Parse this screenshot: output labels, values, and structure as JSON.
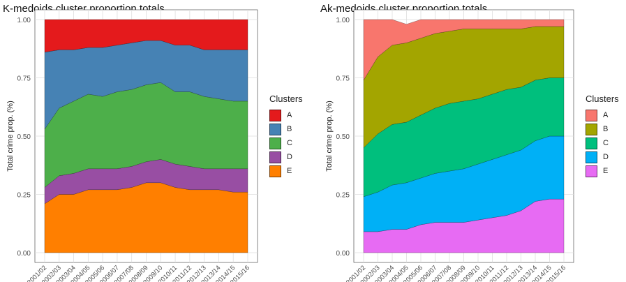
{
  "chart_data": [
    {
      "type": "area",
      "stacked": true,
      "title": "K-medoids cluster proportion totals",
      "xlabel": "",
      "ylabel": "Total crime prop. (%)",
      "ylim": [
        0,
        1
      ],
      "yticks": [
        "0.00",
        "0.25",
        "0.50",
        "0.75",
        "1.00"
      ],
      "grid": true,
      "legend_title": "Clusters",
      "legend_position": "right",
      "categories": [
        "2001/02",
        "2002/03",
        "2003/04",
        "2004/05",
        "2005/06",
        "2006/07",
        "2007/08",
        "2008/09",
        "2009/10",
        "2010/11",
        "2011/12",
        "2012/13",
        "2013/14",
        "2014/15",
        "2015/16"
      ],
      "series": [
        {
          "name": "A",
          "color": "#E41A1C",
          "values": [
            0.14,
            0.13,
            0.13,
            0.12,
            0.12,
            0.11,
            0.1,
            0.09,
            0.09,
            0.11,
            0.11,
            0.13,
            0.13,
            0.13,
            0.13
          ]
        },
        {
          "name": "B",
          "color": "#4682B4",
          "values": [
            0.33,
            0.25,
            0.22,
            0.2,
            0.21,
            0.2,
            0.2,
            0.19,
            0.18,
            0.2,
            0.2,
            0.2,
            0.21,
            0.22,
            0.22
          ]
        },
        {
          "name": "C",
          "color": "#4DAF4A",
          "values": [
            0.25,
            0.29,
            0.31,
            0.32,
            0.31,
            0.33,
            0.33,
            0.33,
            0.33,
            0.31,
            0.32,
            0.31,
            0.3,
            0.29,
            0.29
          ]
        },
        {
          "name": "D",
          "color": "#984EA3",
          "values": [
            0.07,
            0.08,
            0.09,
            0.09,
            0.09,
            0.09,
            0.09,
            0.09,
            0.1,
            0.1,
            0.1,
            0.09,
            0.09,
            0.1,
            0.1
          ]
        },
        {
          "name": "E",
          "color": "#FF7F00",
          "values": [
            0.21,
            0.25,
            0.25,
            0.27,
            0.27,
            0.27,
            0.28,
            0.3,
            0.3,
            0.28,
            0.27,
            0.27,
            0.27,
            0.26,
            0.26
          ]
        }
      ]
    },
    {
      "type": "area",
      "stacked": true,
      "title": "Ak-medoids cluster proportion totals",
      "xlabel": "",
      "ylabel": "Total crime prop. (%)",
      "ylim": [
        0,
        1
      ],
      "yticks": [
        "0.00",
        "0.25",
        "0.50",
        "0.75",
        "1.00"
      ],
      "grid": true,
      "legend_title": "Clusters",
      "legend_position": "right",
      "categories": [
        "2001/02",
        "2002/03",
        "2003/04",
        "2004/05",
        "2005/06",
        "2006/07",
        "2007/08",
        "2008/09",
        "2009/10",
        "2010/11",
        "2011/12",
        "2012/13",
        "2013/14",
        "2014/15",
        "2015/16"
      ],
      "series": [
        {
          "name": "A",
          "color": "#F8766D",
          "values": [
            0.26,
            0.16,
            0.11,
            0.08,
            0.08,
            0.06,
            0.05,
            0.04,
            0.04,
            0.04,
            0.04,
            0.04,
            0.03,
            0.03,
            0.03
          ]
        },
        {
          "name": "B",
          "color": "#A3A500",
          "values": [
            0.29,
            0.33,
            0.34,
            0.34,
            0.33,
            0.32,
            0.31,
            0.31,
            0.3,
            0.28,
            0.26,
            0.25,
            0.23,
            0.22,
            0.22
          ]
        },
        {
          "name": "C",
          "color": "#00BF7D",
          "values": [
            0.21,
            0.25,
            0.26,
            0.26,
            0.27,
            0.28,
            0.29,
            0.29,
            0.28,
            0.28,
            0.28,
            0.27,
            0.26,
            0.25,
            0.25
          ]
        },
        {
          "name": "D",
          "color": "#00B0F6",
          "values": [
            0.15,
            0.17,
            0.19,
            0.2,
            0.2,
            0.21,
            0.22,
            0.23,
            0.24,
            0.25,
            0.26,
            0.26,
            0.26,
            0.27,
            0.27
          ]
        },
        {
          "name": "E",
          "color": "#E76BF3",
          "values": [
            0.09,
            0.09,
            0.1,
            0.1,
            0.12,
            0.13,
            0.13,
            0.13,
            0.14,
            0.15,
            0.16,
            0.18,
            0.22,
            0.23,
            0.23
          ]
        }
      ]
    }
  ]
}
